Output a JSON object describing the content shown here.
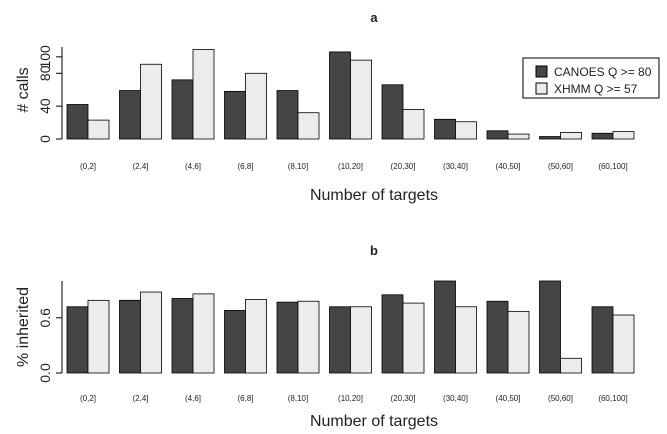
{
  "chart_data": [
    {
      "type": "bar",
      "title": "a",
      "xlabel": "Number of targets",
      "ylabel": "# calls",
      "categories": [
        "(0,2]",
        "(2,4]",
        "(4,6]",
        "(6,8]",
        "(8,10]",
        "(10,20]",
        "(20,30]",
        "(30,40]",
        "(40,50]",
        "(50,60]",
        "(60,100]"
      ],
      "ylim": [
        0,
        112
      ],
      "yticks": [
        0,
        40,
        80,
        100
      ],
      "ytick_labels": [
        "0",
        "40",
        "80",
        "100"
      ],
      "legend_position": "top-right",
      "grid": false,
      "series": [
        {
          "name": "CANOES Q >= 80",
          "color": "#454545",
          "values": [
            42,
            59,
            72,
            58,
            59,
            106,
            66,
            24,
            10,
            3,
            7
          ]
        },
        {
          "name": "XHMM Q >= 57",
          "color": "#ececec",
          "values": [
            23,
            91,
            109,
            80,
            32,
            96,
            36,
            21,
            6,
            8,
            9
          ]
        }
      ]
    },
    {
      "type": "bar",
      "title": "b",
      "xlabel": "Number of targets",
      "ylabel": "% inherited",
      "categories": [
        "(0,2]",
        "(2,4]",
        "(4,6]",
        "(6,8]",
        "(8,10]",
        "(10,20]",
        "(20,30]",
        "(30,40]",
        "(40,50]",
        "(50,60]",
        "(60,100]"
      ],
      "ylim": [
        0,
        1
      ],
      "yticks": [
        0,
        0.6
      ],
      "ytick_labels": [
        "0.0",
        "0.6"
      ],
      "grid": false,
      "series": [
        {
          "name": "CANOES Q >= 80",
          "color": "#454545",
          "values": [
            0.72,
            0.79,
            0.81,
            0.68,
            0.77,
            0.72,
            0.85,
            1.0,
            0.78,
            1.0,
            0.72
          ]
        },
        {
          "name": "XHMM Q >= 57",
          "color": "#ececec",
          "values": [
            0.79,
            0.88,
            0.86,
            0.8,
            0.78,
            0.72,
            0.76,
            0.72,
            0.67,
            0.16,
            0.63
          ]
        }
      ]
    }
  ]
}
